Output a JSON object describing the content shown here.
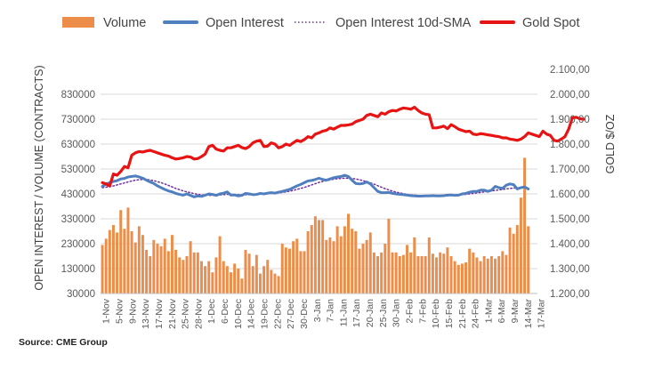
{
  "chart_data": {
    "type": "bar+line",
    "legend": [
      {
        "name": "Volume",
        "style": "bar",
        "color": "#ED8D4A"
      },
      {
        "name": "Open Interest",
        "style": "line",
        "color": "#4F7FBF"
      },
      {
        "name": "Open Interest 10d-SMA",
        "style": "dotted",
        "color": "#7030A0"
      },
      {
        "name": "Gold Spot",
        "style": "line",
        "color": "#E81414"
      }
    ],
    "ylabel_left": "OPEN INTEREST / VOLUME (CONTRACTS)",
    "ylabel_right": "GOLD $/OZ",
    "ylim_left": [
      30000,
      930000
    ],
    "ylim_right": [
      1200,
      2100
    ],
    "yticks_left": [
      "830000",
      "730000",
      "630000",
      "530000",
      "430000",
      "330000",
      "230000",
      "130000",
      "30000"
    ],
    "yticks_right": [
      "2.100,00",
      "2.000,00",
      "1.900,00",
      "1.800,00",
      "1.700,00",
      "1.600,00",
      "1.500,00",
      "1.400,00",
      "1.300,00",
      "1.200,00"
    ],
    "x_start": "1-Nov",
    "x_end": "17-Mar",
    "xticks": [
      "1-Nov",
      "5-Nov",
      "9-Nov",
      "13-Nov",
      "17-Nov",
      "21-Nov",
      "25-Nov",
      "28-Nov",
      "1-Dec",
      "6-Dec",
      "10-Dec",
      "14-Dec",
      "19-Dec",
      "22-Dec",
      "27-Dec",
      "30-Dec",
      "3-Jan",
      "7-Jan",
      "11-Jan",
      "17-Jan",
      "20-Jan",
      "25-Jan",
      "30-Jan",
      "2-Feb",
      "7-Feb",
      "10-Feb",
      "15-Feb",
      "21-Feb",
      "24-Feb",
      "1-Mar",
      "6-Mar",
      "9-Mar",
      "14-Mar",
      "17-Mar"
    ],
    "volume": [
      225000,
      250000,
      285000,
      305000,
      275000,
      365000,
      290000,
      375000,
      280000,
      235000,
      300000,
      265000,
      205000,
      180000,
      245000,
      230000,
      220000,
      250000,
      200000,
      265000,
      205000,
      175000,
      165000,
      180000,
      240000,
      195000,
      195000,
      160000,
      140000,
      160000,
      115000,
      175000,
      260000,
      160000,
      140000,
      115000,
      150000,
      130000,
      90000,
      205000,
      190000,
      140000,
      185000,
      110000,
      140000,
      165000,
      125000,
      110000,
      100000,
      230000,
      215000,
      210000,
      240000,
      250000,
      200000,
      200000,
      280000,
      305000,
      340000,
      325000,
      325000,
      245000,
      255000,
      240000,
      300000,
      260000,
      300000,
      350000,
      290000,
      280000,
      210000,
      230000,
      245000,
      275000,
      195000,
      180000,
      195000,
      230000,
      330000,
      195000,
      195000,
      180000,
      185000,
      225000,
      195000,
      255000,
      180000,
      180000,
      180000,
      255000,
      190000,
      175000,
      195000,
      190000,
      215000,
      180000,
      160000,
      145000,
      150000,
      155000,
      210000,
      195000,
      175000,
      160000,
      180000,
      170000,
      180000,
      170000,
      180000,
      200000,
      185000,
      295000,
      270000,
      305000,
      415000,
      575000,
      300000
    ],
    "open_interest": [
      460000,
      470000,
      475000,
      480000,
      483000,
      490000,
      492000,
      498000,
      500000,
      502000,
      498000,
      493000,
      485000,
      478000,
      472000,
      462000,
      455000,
      448000,
      442000,
      438000,
      432000,
      428000,
      425000,
      430000,
      424000,
      418000,
      422000,
      420000,
      425000,
      430000,
      428000,
      424000,
      430000,
      433000,
      438000,
      425000,
      426000,
      422000,
      424000,
      432000,
      430000,
      427000,
      428000,
      432000,
      430000,
      433000,
      435000,
      433000,
      437000,
      440000,
      444000,
      448000,
      455000,
      462000,
      468000,
      475000,
      482000,
      484000,
      488000,
      493000,
      488000,
      485000,
      490000,
      495000,
      498000,
      500000,
      505000,
      500000,
      485000,
      472000,
      470000,
      472000,
      478000,
      470000,
      455000,
      440000,
      435000,
      435000,
      436000,
      432000,
      430000,
      428000,
      427000,
      425000,
      423000,
      422000,
      421000,
      421000,
      422000,
      422000,
      423000,
      422000,
      422000,
      423000,
      425000,
      426000,
      424000,
      425000,
      430000,
      432000,
      437000,
      440000,
      440000,
      445000,
      445000,
      440000,
      445000,
      460000,
      455000,
      452000,
      465000,
      470000,
      467000,
      450000,
      455000,
      458000,
      450000
    ],
    "oi_sma": [
      455000,
      457000,
      459000,
      462000,
      466000,
      470000,
      474000,
      478000,
      482000,
      485000,
      487000,
      488000,
      488000,
      486000,
      483000,
      479000,
      475000,
      470000,
      464000,
      458000,
      452000,
      447000,
      442000,
      438000,
      435000,
      431000,
      428000,
      426000,
      425000,
      424000,
      424000,
      425000,
      426000,
      427000,
      428000,
      428000,
      427000,
      427000,
      427000,
      427000,
      427000,
      428000,
      428000,
      429000,
      430000,
      431000,
      432000,
      433000,
      434000,
      436000,
      438000,
      441000,
      444000,
      448000,
      452000,
      456000,
      461000,
      466000,
      471000,
      476000,
      480000,
      483000,
      486000,
      489000,
      491000,
      492000,
      493000,
      493000,
      492000,
      490000,
      487000,
      483000,
      479000,
      474000,
      469000,
      463000,
      457000,
      451000,
      446000,
      441000,
      437000,
      434000,
      431000,
      428000,
      426000,
      425000,
      424000,
      423000,
      422000,
      422000,
      422000,
      422000,
      422000,
      422000,
      422000,
      423000,
      424000,
      425000,
      427000,
      428000,
      430000,
      432000,
      434000,
      436000,
      438000,
      440000,
      442000,
      444000,
      446000,
      448000,
      450000,
      452000,
      453000,
      454000,
      455000,
      455000,
      455000
    ],
    "gold_spot": [
      1645,
      1640,
      1632,
      1680,
      1675,
      1690,
      1710,
      1705,
      1755,
      1765,
      1770,
      1768,
      1772,
      1775,
      1770,
      1765,
      1760,
      1755,
      1752,
      1745,
      1740,
      1742,
      1745,
      1750,
      1748,
      1740,
      1742,
      1750,
      1760,
      1790,
      1795,
      1780,
      1775,
      1772,
      1785,
      1785,
      1790,
      1795,
      1786,
      1782,
      1790,
      1805,
      1812,
      1815,
      1790,
      1792,
      1805,
      1800,
      1785,
      1790,
      1800,
      1795,
      1805,
      1815,
      1810,
      1818,
      1830,
      1825,
      1840,
      1845,
      1852,
      1855,
      1865,
      1860,
      1868,
      1875,
      1875,
      1877,
      1880,
      1890,
      1895,
      1900,
      1915,
      1920,
      1915,
      1910,
      1925,
      1920,
      1930,
      1935,
      1933,
      1940,
      1945,
      1943,
      1940,
      1948,
      1935,
      1925,
      1920,
      1918,
      1865,
      1865,
      1868,
      1872,
      1862,
      1878,
      1870,
      1860,
      1855,
      1850,
      1852,
      1840,
      1838,
      1842,
      1840,
      1837,
      1835,
      1832,
      1830,
      1825,
      1825,
      1820,
      1818,
      1815,
      1820,
      1830,
      1845,
      1840,
      1835,
      1830,
      1852,
      1840,
      1835,
      1815,
      1812,
      1820,
      1830,
      1860,
      1905,
      1908,
      1902,
      1900
    ]
  },
  "source": "Source: CME Group"
}
